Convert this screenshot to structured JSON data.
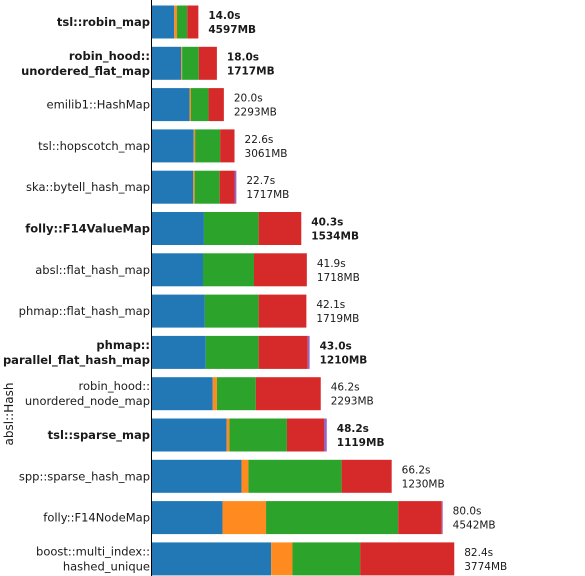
{
  "chart_data": {
    "type": "bar",
    "orientation": "horizontal",
    "stacked": true,
    "title": "",
    "xlabel": "",
    "ylabel": "absl::Hash",
    "xlim": [
      0,
      82.4
    ],
    "segment_colors": [
      "#2178b5",
      "#ff8a1f",
      "#2ca42c",
      "#d62929",
      "#9b63c1"
    ],
    "categories": [
      {
        "lines": [
          "tsl::robin_map"
        ],
        "bold": true,
        "total": "14.0s",
        "memory": "4597MB",
        "segments": [
          4.8,
          0.6,
          2.2,
          2.4,
          0.0
        ]
      },
      {
        "lines": [
          "robin_hood::",
          "unordered_flat_map"
        ],
        "bold": true,
        "total": "18.0s",
        "memory": "1717MB",
        "segments": [
          6.3,
          0.2,
          3.6,
          3.9,
          0.0
        ]
      },
      {
        "lines": [
          "emilib1::HashMap"
        ],
        "bold": false,
        "total": "20.0s",
        "memory": "2293MB",
        "segments": [
          8.1,
          0.3,
          3.8,
          3.3,
          0.0
        ]
      },
      {
        "lines": [
          "tsl::hopscotch_map"
        ],
        "bold": false,
        "total": "22.6s",
        "memory": "3061MB",
        "segments": [
          9.0,
          0.3,
          5.4,
          3.1,
          0.0
        ]
      },
      {
        "lines": [
          "ska::bytell_hash_map"
        ],
        "bold": false,
        "total": "22.7s",
        "memory": "1717MB",
        "segments": [
          8.9,
          0.3,
          5.4,
          3.2,
          0.4
        ]
      },
      {
        "lines": [
          "folly::F14ValueMap"
        ],
        "bold": true,
        "total": "40.3s",
        "memory": "1534MB",
        "segments": [
          11.2,
          0.0,
          11.8,
          9.2,
          0.0
        ]
      },
      {
        "lines": [
          "absl::flat_hash_map"
        ],
        "bold": false,
        "total": "41.9s",
        "memory": "1718MB",
        "segments": [
          11.0,
          0.0,
          11.0,
          11.4,
          0.0
        ]
      },
      {
        "lines": [
          "phmap::flat_hash_map"
        ],
        "bold": false,
        "total": "42.1s",
        "memory": "1719MB",
        "segments": [
          11.4,
          0.0,
          11.6,
          10.3,
          0.0
        ]
      },
      {
        "lines": [
          "phmap::",
          "parallel_flat_hash_map"
        ],
        "bold": true,
        "total": "43.0s",
        "memory": "1210MB",
        "segments": [
          11.6,
          0.0,
          11.4,
          10.6,
          0.4
        ]
      },
      {
        "lines": [
          "robin_hood::",
          "unordered_node_map"
        ],
        "bold": false,
        "total": "46.2s",
        "memory": "2293MB",
        "segments": [
          13.1,
          0.9,
          8.4,
          14.0,
          0.0
        ]
      },
      {
        "lines": [
          "tsl::sparse_map"
        ],
        "bold": true,
        "total": "48.2s",
        "memory": "1119MB",
        "segments": [
          16.1,
          0.6,
          12.4,
          8.0,
          0.6
        ]
      },
      {
        "lines": [
          "spp::sparse_hash_map"
        ],
        "bold": false,
        "total": "66.2s",
        "memory": "1230MB",
        "segments": [
          19.3,
          1.5,
          20.1,
          10.8,
          0.0
        ]
      },
      {
        "lines": [
          "folly::F14NodeMap"
        ],
        "bold": false,
        "total": "80.0s",
        "memory": "4542MB",
        "segments": [
          15.2,
          9.4,
          28.5,
          9.4,
          0.2
        ]
      },
      {
        "lines": [
          "boost::multi_index::",
          "hashed_unique"
        ],
        "bold": false,
        "total": "82.4s",
        "memory": "3774MB",
        "segments": [
          25.7,
          4.6,
          14.6,
          20.3,
          0.0
        ]
      }
    ]
  }
}
